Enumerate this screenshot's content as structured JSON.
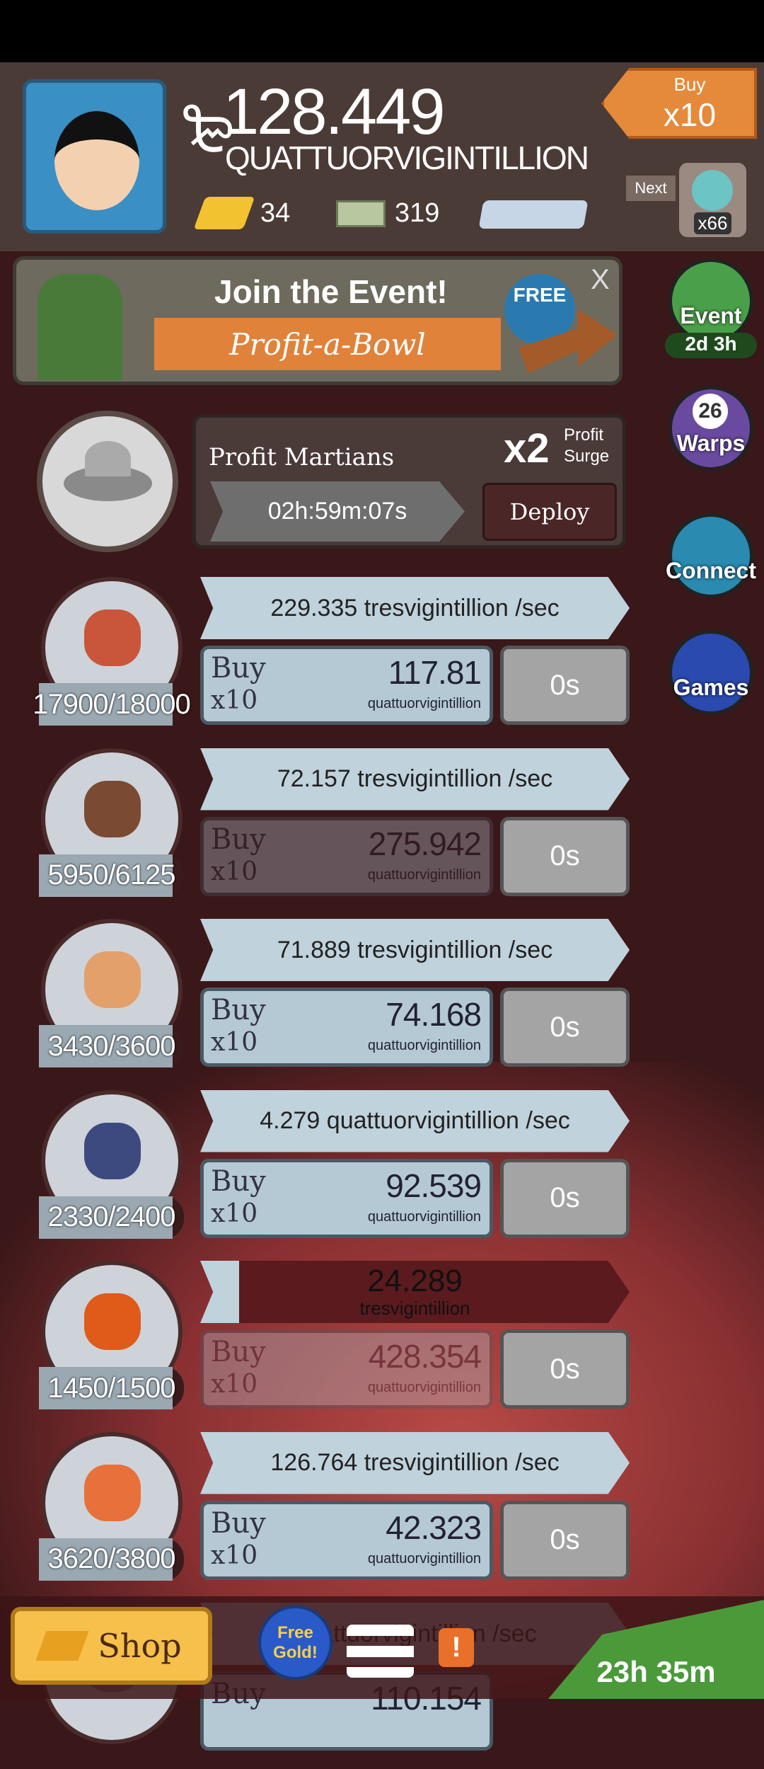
{
  "header": {
    "money": "128.449",
    "money_unit": "QUATTUORVIGINTILLION",
    "gold": "34",
    "megabucks": "319",
    "buy_label": "Buy",
    "buy_amount": "x10",
    "next_label": "Next",
    "next_count": "x66"
  },
  "event_banner": {
    "title": "Join the Event!",
    "subtitle": "Profit-a-Bowl",
    "badge": "FREE",
    "close": "X"
  },
  "side_buttons": [
    {
      "label": "Event",
      "sub": "2d 3h"
    },
    {
      "label": "Warps",
      "count": "26"
    },
    {
      "label": "Connect"
    },
    {
      "label": "Games"
    }
  ],
  "manager": {
    "name": "Profit Martians",
    "multiplier": "x2",
    "bonus": "Profit Surge",
    "timer": "02h:59m:07s",
    "button": "Deploy"
  },
  "businesses": [
    {
      "owned": "17900/18000",
      "rate": "229.335 tresvigintillion /sec",
      "buy": "Buy",
      "buy_amount": "x10",
      "cost": "117.81",
      "cost_unit": "quattuorvigintillion",
      "timer": "0s",
      "affordable": true,
      "color": "#c9553a"
    },
    {
      "owned": "5950/6125",
      "rate": "72.157 tresvigintillion /sec",
      "buy": "Buy",
      "buy_amount": "x10",
      "cost": "275.942",
      "cost_unit": "quattuorvigintillion",
      "timer": "0s",
      "affordable": false,
      "color": "#7a4a32"
    },
    {
      "owned": "3430/3600",
      "rate": "71.889 tresvigintillion /sec",
      "buy": "Buy",
      "buy_amount": "x10",
      "cost": "74.168",
      "cost_unit": "quattuorvigintillion",
      "timer": "0s",
      "affordable": true,
      "color": "#e3a06a"
    },
    {
      "owned": "2330/2400",
      "rate": "4.279 quattuorvigintillion /sec",
      "buy": "Buy",
      "buy_amount": "x10",
      "cost": "92.539",
      "cost_unit": "quattuorvigintillion",
      "timer": "0s",
      "affordable": true,
      "color": "#3c4a80"
    },
    {
      "owned": "1450/1500",
      "rate": "24.289",
      "rate_unit": "tresvigintillion",
      "in_progress": true,
      "buy": "Buy",
      "buy_amount": "x10",
      "cost": "428.354",
      "cost_unit": "quattuorvigintillion",
      "timer": "0s",
      "affordable": false,
      "color": "#e05a1a"
    },
    {
      "owned": "3620/3800",
      "rate": "126.764 tresvigintillion /sec",
      "buy": "Buy",
      "buy_amount": "x10",
      "cost": "42.323",
      "cost_unit": "quattuorvigintillion",
      "timer": "0s",
      "affordable": true,
      "color": "#e8703a"
    },
    {
      "rate": "quattuorvigintillion /sec",
      "buy": "Buy",
      "cost": "110.154",
      "affordable": true,
      "color": "#888888"
    }
  ],
  "bottom_bar": {
    "shop": "Shop",
    "free_gold": "Free Gold!",
    "timer": "23h 35m"
  }
}
